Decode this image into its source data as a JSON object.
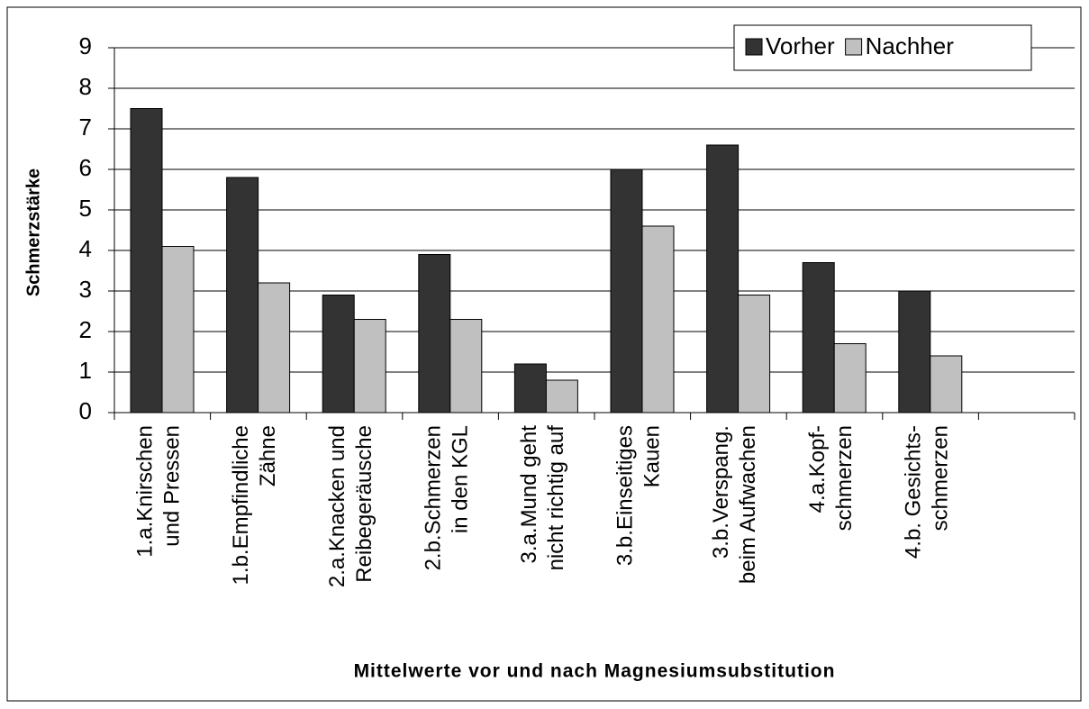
{
  "chart_data": {
    "type": "bar",
    "y_label": "Schmerzstärke",
    "x_label": "Mittelwerte vor und nach Magnesiumsubstitution",
    "categories": [
      [
        "1.a.Knirschen",
        "und Pressen"
      ],
      [
        "1.b.Empfindliche",
        "Zähne"
      ],
      [
        "2.a.Knacken und",
        "Reibegeräusche"
      ],
      [
        "2.b.Schmerzen",
        "in den KGL"
      ],
      [
        "3.a.Mund geht",
        "nicht richtig auf"
      ],
      [
        "3.b.Einseitiges",
        "Kauen"
      ],
      [
        "3.b.Verspang.",
        "beim Aufwachen"
      ],
      [
        "4.a.Kopf-",
        "schmerzen"
      ],
      [
        "4.b. Gesichts-",
        "schmerzen"
      ],
      null
    ],
    "series": [
      {
        "name": "Vorher",
        "color": "#333333",
        "values": [
          7.5,
          5.8,
          2.9,
          3.9,
          1.2,
          6.0,
          6.6,
          3.7,
          3.0,
          null
        ]
      },
      {
        "name": "Nachher",
        "color": "#c0c0c0",
        "values": [
          4.1,
          3.2,
          2.3,
          2.3,
          0.8,
          4.6,
          2.9,
          1.7,
          1.4,
          null
        ]
      }
    ],
    "ylim": [
      0,
      9
    ],
    "yticks": [
      0,
      1,
      2,
      3,
      4,
      5,
      6,
      7,
      8,
      9
    ],
    "grid": true,
    "legend": "top-right"
  }
}
